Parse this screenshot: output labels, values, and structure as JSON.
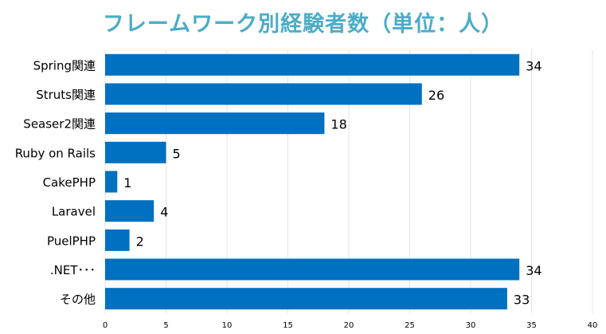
{
  "colors": {
    "title": "#4bacc6",
    "bar": "#0070c0",
    "grid": "#e3e3e3",
    "text": "#000000"
  },
  "chart_data": {
    "type": "bar",
    "orientation": "horizontal",
    "title": "フレームワーク別経験者数（単位：人）",
    "xlabel": "",
    "ylabel": "",
    "categories": [
      "Spring関連",
      "Struts関連",
      "Seaser2関連",
      "Ruby on Rails",
      "CakePHP",
      "Laravel",
      "PuelPHP",
      ".NET･･･",
      "その他"
    ],
    "values": [
      34,
      26,
      18,
      5,
      1,
      4,
      2,
      34,
      33
    ],
    "xlim": [
      0,
      40
    ],
    "xticks": [
      0,
      5,
      10,
      15,
      20,
      25,
      30,
      35,
      40
    ],
    "grid": true,
    "data_labels": true,
    "legend": "none"
  }
}
